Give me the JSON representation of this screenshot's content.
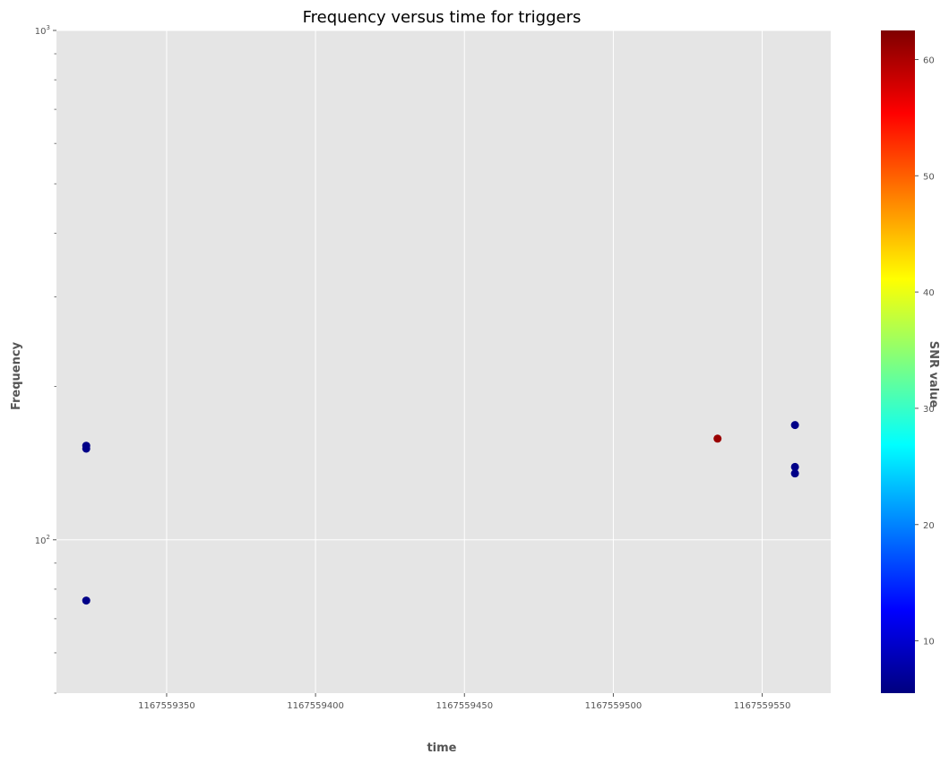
{
  "chart_data": {
    "type": "scatter",
    "title": "Frequency versus time for triggers",
    "xlabel": "time",
    "ylabel": "Frequency",
    "xscale": "linear",
    "yscale": "log",
    "xlim": [
      1167559313,
      1167559573
    ],
    "ylim": [
      50,
      1000
    ],
    "xticks": [
      "1167559350",
      "1167559400",
      "1167559450",
      "1167559500",
      "1167559550"
    ],
    "xtick_values": [
      1167559350,
      1167559400,
      1167559450,
      1167559500,
      1167559550
    ],
    "yticks": [
      {
        "value": 1000,
        "base": "10",
        "exp": "3"
      },
      {
        "value": 100,
        "base": "10",
        "exp": "2"
      }
    ],
    "grid": true,
    "background": "#e5e5e5",
    "colormap": "jet",
    "colorbar": {
      "label": "SNR value",
      "range": [
        5.5,
        62.5
      ],
      "ticks": [
        "10",
        "20",
        "30",
        "40",
        "50",
        "60"
      ],
      "tick_values": [
        10,
        20,
        30,
        40,
        50,
        60
      ],
      "stops": [
        "#00007f",
        "#0000ff",
        "#007fff",
        "#00ffff",
        "#7fff7f",
        "#ffff00",
        "#ff7f00",
        "#ff0000",
        "#7f0000"
      ]
    },
    "points": [
      {
        "x": 1167559323,
        "y": 153,
        "snr": 6
      },
      {
        "x": 1167559323,
        "y": 151,
        "snr": 6
      },
      {
        "x": 1167559323,
        "y": 76,
        "snr": 6
      },
      {
        "x": 1167559535,
        "y": 158,
        "snr": 61
      },
      {
        "x": 1167559561,
        "y": 168,
        "snr": 6
      },
      {
        "x": 1167559561,
        "y": 139,
        "snr": 6
      },
      {
        "x": 1167559561,
        "y": 135,
        "snr": 6
      }
    ]
  }
}
